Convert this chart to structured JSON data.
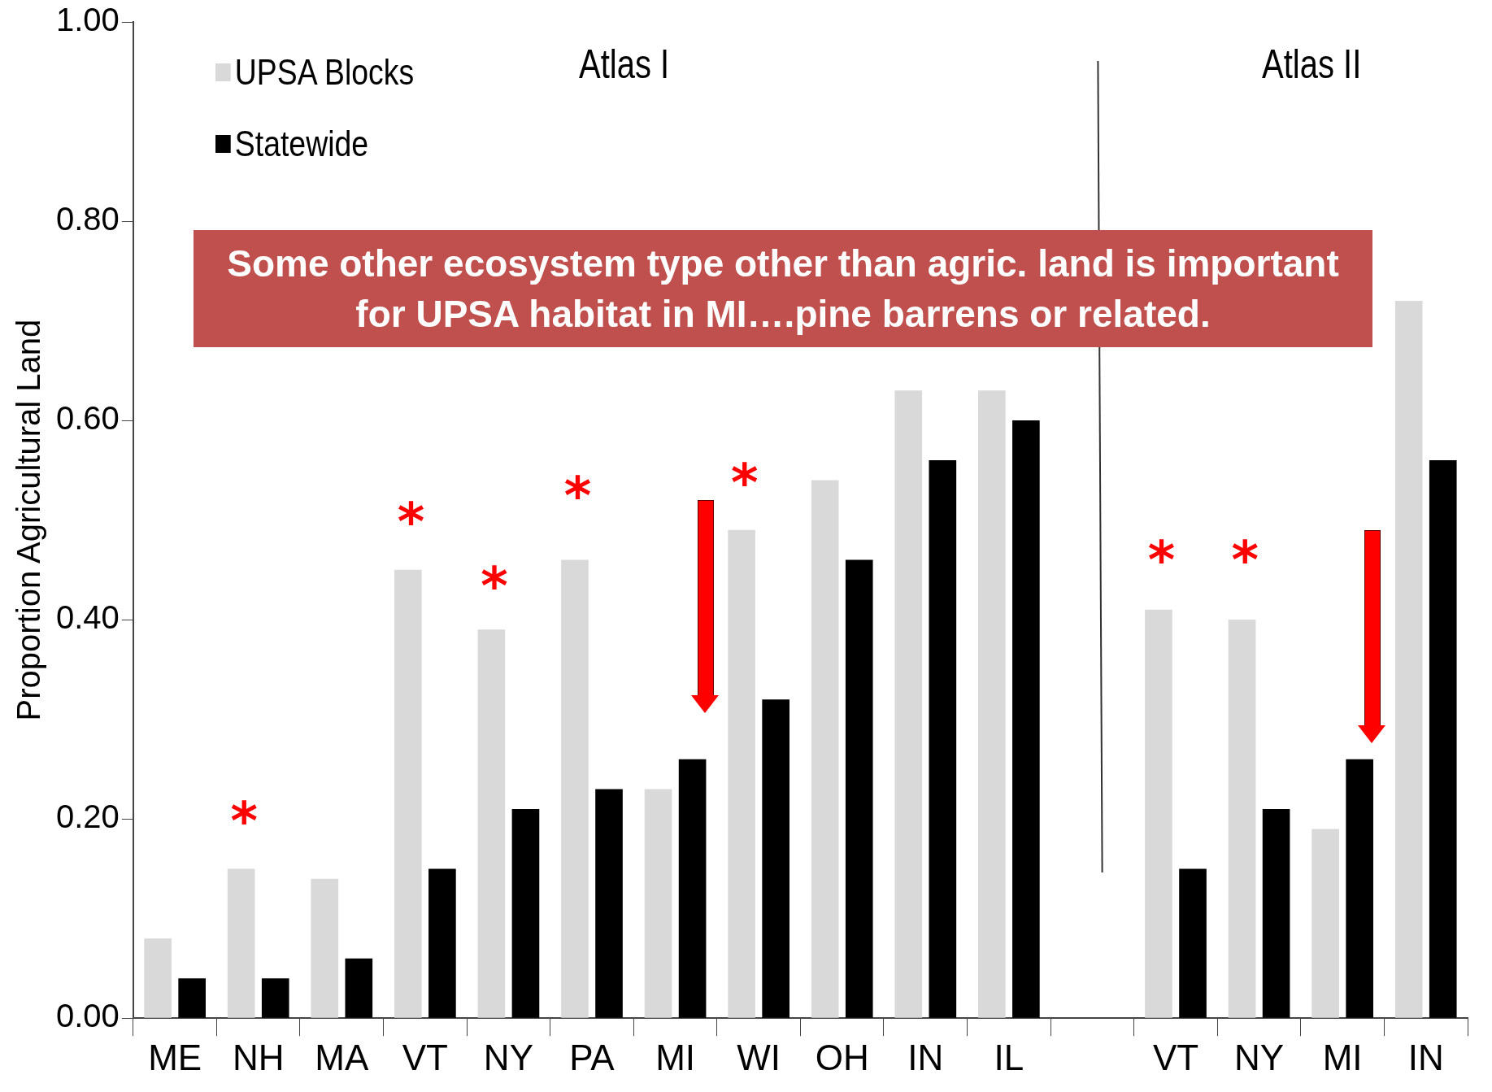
{
  "chart_data": {
    "type": "bar",
    "ylabel": "Proportion Agricultural Land",
    "categories": [
      "ME",
      "NH",
      "MA",
      "VT",
      "NY",
      "PA",
      "MI",
      "WI",
      "OH",
      "IN",
      "IL",
      null,
      "VT",
      "NY",
      "MI",
      "IN"
    ],
    "series": [
      {
        "name": "UPSA Blocks",
        "color": "#d9d9d9",
        "values": [
          0.08,
          0.15,
          0.14,
          0.45,
          0.39,
          0.46,
          0.23,
          0.49,
          0.54,
          0.63,
          0.63,
          null,
          0.41,
          0.4,
          0.19,
          0.72
        ]
      },
      {
        "name": "Statewide",
        "color": "#000000",
        "values": [
          0.04,
          0.04,
          0.06,
          0.15,
          0.21,
          0.23,
          0.26,
          0.32,
          0.46,
          0.56,
          0.6,
          null,
          0.15,
          0.21,
          0.26,
          0.56
        ]
      }
    ],
    "ylim": [
      0,
      1
    ],
    "yticks": [
      {
        "value": 0,
        "label": "0.00"
      },
      {
        "value": 0.2,
        "label": "0.20"
      },
      {
        "value": 0.4,
        "label": "0.40"
      },
      {
        "value": 0.6,
        "label": "0.60"
      },
      {
        "value": 0.8,
        "label": "0.80"
      },
      {
        "value": 1,
        "label": "1.00"
      }
    ],
    "grid": false,
    "legend": "top left",
    "annotations": [
      "Atlas I",
      "Atlas II",
      "Some other ecosystem type other than agric. land is important for UPSA habitat in MI….pine barrens or related.",
      "*",
      "*",
      "*",
      "*",
      "*",
      "*",
      "*"
    ]
  }
}
